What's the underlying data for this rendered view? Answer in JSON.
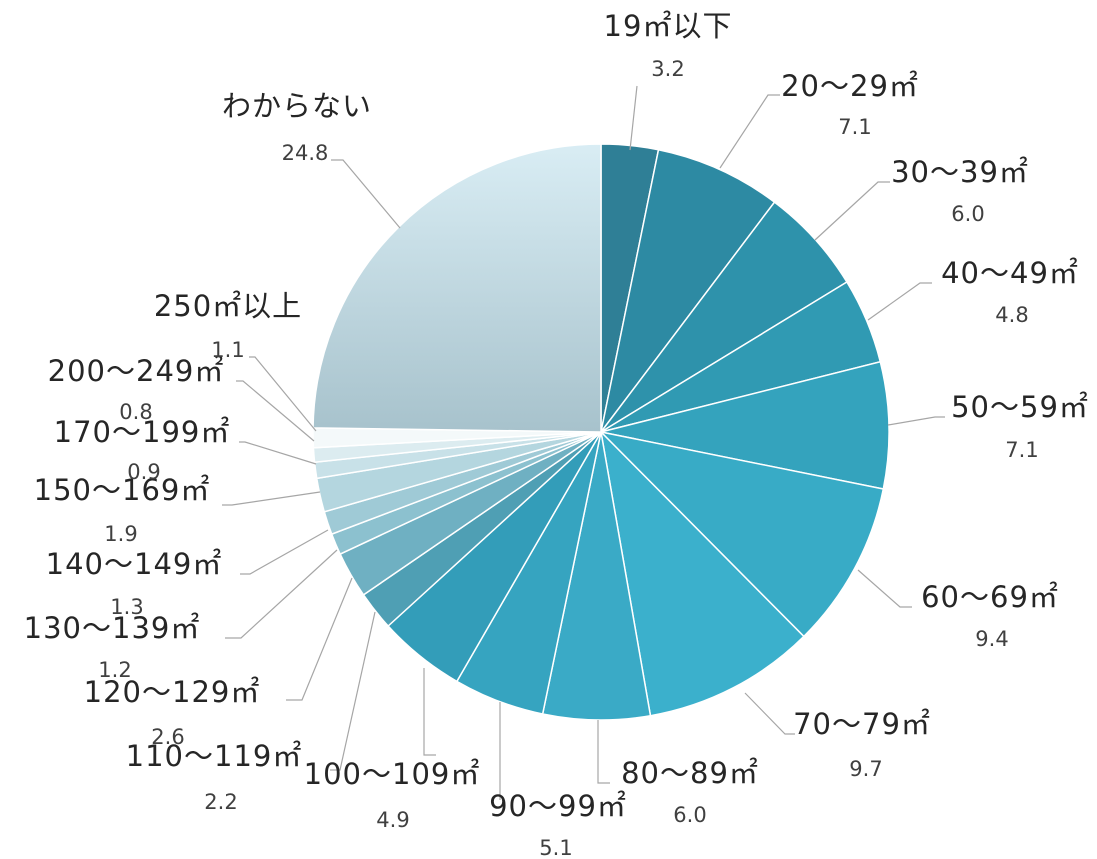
{
  "chart_data": {
    "type": "pie",
    "title": "",
    "start_angle_deg": 0,
    "direction": "clockwise",
    "unit": "%",
    "slices": [
      {
        "label": "19㎡以下",
        "value": 3.2,
        "value_label": "3.2",
        "color": "#2f7f96"
      },
      {
        "label": "20〜29㎡",
        "value": 7.1,
        "value_label": "7.1",
        "color": "#2d8aa3"
      },
      {
        "label": "30〜39㎡",
        "value": 6.0,
        "value_label": "6.0",
        "color": "#2e92ab"
      },
      {
        "label": "40〜49㎡",
        "value": 4.8,
        "value_label": "4.8",
        "color": "#309ab3"
      },
      {
        "label": "50〜59㎡",
        "value": 7.1,
        "value_label": "7.1",
        "color": "#34a3bd"
      },
      {
        "label": "60〜69㎡",
        "value": 9.4,
        "value_label": "9.4",
        "color": "#38abc6"
      },
      {
        "label": "70〜79㎡",
        "value": 9.7,
        "value_label": "9.7",
        "color": "#3bb0cc"
      },
      {
        "label": "80〜89㎡",
        "value": 6.0,
        "value_label": "6.0",
        "color": "#3aaac6"
      },
      {
        "label": "90〜99㎡",
        "value": 5.1,
        "value_label": "5.1",
        "color": "#36a4c0"
      },
      {
        "label": "100〜109㎡",
        "value": 4.9,
        "value_label": "4.9",
        "color": "#339db9"
      },
      {
        "label": "110〜119㎡",
        "value": 2.2,
        "value_label": "2.2",
        "color": "#4f9fb4"
      },
      {
        "label": "120〜129㎡",
        "value": 2.6,
        "value_label": "2.6",
        "color": "#6fb0c2"
      },
      {
        "label": "130〜139㎡",
        "value": 1.2,
        "value_label": "1.2",
        "color": "#8cc1cf"
      },
      {
        "label": "140〜149㎡",
        "value": 1.3,
        "value_label": "1.3",
        "color": "#9fcad6"
      },
      {
        "label": "150〜169㎡",
        "value": 1.9,
        "value_label": "1.9",
        "color": "#b4d6df"
      },
      {
        "label": "170〜199㎡",
        "value": 0.9,
        "value_label": "0.9",
        "color": "#c8e1e8"
      },
      {
        "label": "200〜249㎡",
        "value": 0.8,
        "value_label": "0.8",
        "color": "#dcecf0"
      },
      {
        "label": "250㎡以上",
        "value": 1.1,
        "value_label": "1.1",
        "color": "#f4f9fa"
      },
      {
        "label": "わからない",
        "value": 24.8,
        "value_label": "24.8",
        "color": "#bfdbe6"
      }
    ]
  }
}
